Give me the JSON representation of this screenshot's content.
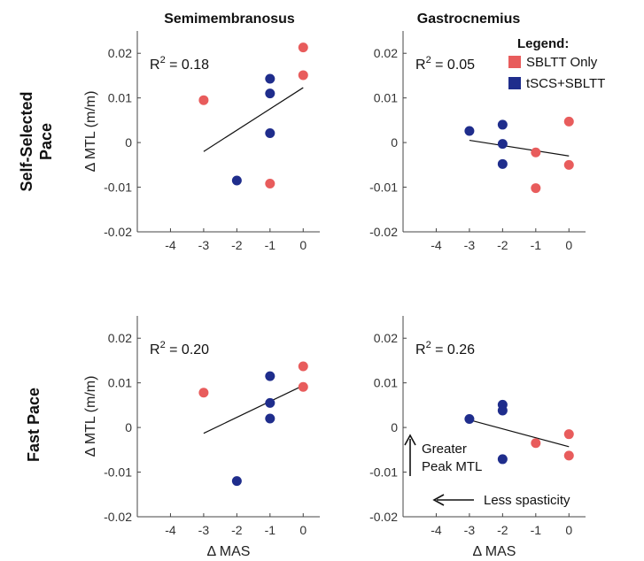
{
  "figure": {
    "col_titles": [
      "Semimembranosus",
      "Gastrocnemius"
    ],
    "row_titles": [
      [
        "Self-Selected",
        "Pace"
      ],
      [
        "Fast Pace"
      ]
    ],
    "legend": {
      "title": "Legend:",
      "items": [
        {
          "label": "SBLTT Only",
          "color": "#e85c5c"
        },
        {
          "label": "tSCS+SBLTT",
          "color": "#1f2d8c"
        }
      ]
    },
    "annotations": {
      "greater_peak": [
        "Greater",
        "Peak MTL"
      ],
      "less_spasticity": "Less spasticity"
    }
  },
  "chart_data": [
    {
      "type": "scatter",
      "row": "Self-Selected Pace",
      "column": "Semimembranosus",
      "xlabel": "",
      "ylabel": "Δ MTL (m/m)",
      "xlim": [
        -5,
        0.5
      ],
      "ylim": [
        -0.02,
        0.025
      ],
      "xticks": [
        -4,
        -3,
        -2,
        -1,
        0
      ],
      "yticks": [
        -0.02,
        -0.01,
        0,
        0.01,
        0.02
      ],
      "ytick_labels": [
        "-0.02",
        "-0.01",
        "0",
        "0.01",
        "0.02"
      ],
      "annotation": {
        "prefix": "R",
        "sup": "2",
        "text": " = 0.18"
      },
      "fit_line": {
        "x": [
          -3,
          0
        ],
        "y": [
          -0.002,
          0.0123
        ]
      },
      "series": [
        {
          "name": "SBLTT Only",
          "color": "#e85c5c",
          "x": [
            -3,
            -1,
            0,
            0
          ],
          "y": [
            0.0095,
            -0.0092,
            0.0213,
            0.0151
          ]
        },
        {
          "name": "tSCS+SBLTT",
          "color": "#1f2d8c",
          "x": [
            -2,
            -1,
            -1,
            -1
          ],
          "y": [
            -0.0085,
            0.0143,
            0.011,
            0.0021
          ]
        }
      ]
    },
    {
      "type": "scatter",
      "row": "Self-Selected Pace",
      "column": "Gastrocnemius",
      "xlabel": "",
      "ylabel": "",
      "xlim": [
        -5,
        0.5
      ],
      "ylim": [
        -0.02,
        0.025
      ],
      "xticks": [
        -4,
        -3,
        -2,
        -1,
        0
      ],
      "yticks": [
        -0.02,
        -0.01,
        0,
        0.01,
        0.02
      ],
      "ytick_labels": [
        "-0.02",
        "-0.01",
        "0",
        "0.01",
        "0.02"
      ],
      "annotation": {
        "prefix": "R",
        "sup": "2",
        "text": " = 0.05"
      },
      "fit_line": {
        "x": [
          -3,
          0
        ],
        "y": [
          0.0005,
          -0.003
        ]
      },
      "series": [
        {
          "name": "SBLTT Only",
          "color": "#e85c5c",
          "x": [
            -1,
            -1,
            0,
            0
          ],
          "y": [
            -0.0022,
            -0.0102,
            0.0047,
            -0.005
          ]
        },
        {
          "name": "tSCS+SBLTT",
          "color": "#1f2d8c",
          "x": [
            -3,
            -2,
            -2,
            -2
          ],
          "y": [
            0.0026,
            0.004,
            -0.0003,
            -0.0048
          ]
        }
      ]
    },
    {
      "type": "scatter",
      "row": "Fast Pace",
      "column": "Semimembranosus",
      "xlabel": "Δ MAS",
      "ylabel": "Δ MTL (m/m)",
      "xlim": [
        -5,
        0.5
      ],
      "ylim": [
        -0.02,
        0.025
      ],
      "xticks": [
        -4,
        -3,
        -2,
        -1,
        0
      ],
      "yticks": [
        -0.02,
        -0.01,
        0,
        0.01,
        0.02
      ],
      "ytick_labels": [
        "-0.02",
        "-0.01",
        "0",
        "0.01",
        "0.02"
      ],
      "annotation": {
        "prefix": "R",
        "sup": "2",
        "text": " = 0.20"
      },
      "fit_line": {
        "x": [
          -3,
          0
        ],
        "y": [
          -0.0013,
          0.0094
        ]
      },
      "series": [
        {
          "name": "SBLTT Only",
          "color": "#e85c5c",
          "x": [
            -3,
            0,
            0
          ],
          "y": [
            0.0078,
            0.0137,
            0.0091
          ]
        },
        {
          "name": "tSCS+SBLTT",
          "color": "#1f2d8c",
          "x": [
            -2,
            -1,
            -1,
            -1
          ],
          "y": [
            -0.012,
            0.0115,
            0.0055,
            0.002
          ]
        }
      ]
    },
    {
      "type": "scatter",
      "row": "Fast Pace",
      "column": "Gastrocnemius",
      "xlabel": "Δ MAS",
      "ylabel": "",
      "xlim": [
        -5,
        0.5
      ],
      "ylim": [
        -0.02,
        0.025
      ],
      "xticks": [
        -4,
        -3,
        -2,
        -1,
        0
      ],
      "yticks": [
        -0.02,
        -0.01,
        0,
        0.01,
        0.02
      ],
      "ytick_labels": [
        "-0.02",
        "-0.01",
        "0",
        "0.01",
        "0.02"
      ],
      "annotation": {
        "prefix": "R",
        "sup": "2",
        "text": " = 0.26"
      },
      "fit_line": {
        "x": [
          -3,
          0
        ],
        "y": [
          0.0017,
          -0.0043
        ]
      },
      "series": [
        {
          "name": "SBLTT Only",
          "color": "#e85c5c",
          "x": [
            -1,
            0,
            0
          ],
          "y": [
            -0.0035,
            -0.0015,
            -0.0063
          ]
        },
        {
          "name": "tSCS+SBLTT",
          "color": "#1f2d8c",
          "x": [
            -3,
            -2,
            -2,
            -2
          ],
          "y": [
            0.0019,
            0.0051,
            0.0038,
            -0.0071
          ]
        }
      ]
    }
  ]
}
